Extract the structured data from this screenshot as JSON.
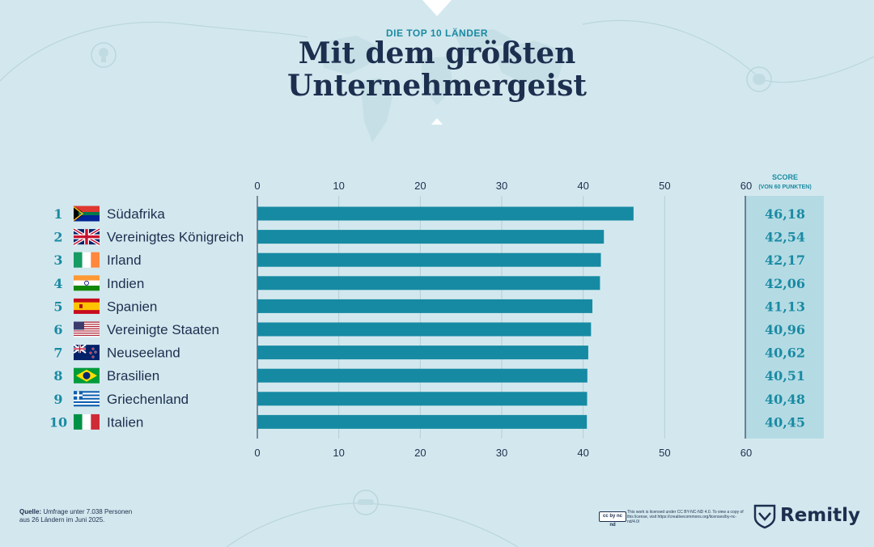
{
  "header": {
    "subtitle": "DIE TOP 10 LÄNDER",
    "title_line1": "Mit dem größten",
    "title_line2": "Unternehmergeist"
  },
  "chart_data": {
    "type": "bar",
    "orientation": "horizontal",
    "xlim": [
      0,
      60
    ],
    "ticks": [
      0,
      10,
      20,
      30,
      40,
      50,
      60
    ],
    "score_header_line1": "SCORE",
    "score_header_line2": "(VON 60 PUNKTEN)",
    "bar_color": "#168aa3",
    "rows": [
      {
        "rank": "1",
        "country": "Südafrika",
        "value": 46.18,
        "label": "46,18",
        "flag": "za-flag"
      },
      {
        "rank": "2",
        "country": "Vereinigtes Königreich",
        "value": 42.54,
        "label": "42,54",
        "flag": "uk-flag"
      },
      {
        "rank": "3",
        "country": "Irland",
        "value": 42.17,
        "label": "42,17",
        "flag": "ie-flag"
      },
      {
        "rank": "4",
        "country": "Indien",
        "value": 42.06,
        "label": "42,06",
        "flag": "in-flag"
      },
      {
        "rank": "5",
        "country": "Spanien",
        "value": 41.13,
        "label": "41,13",
        "flag": "es-flag"
      },
      {
        "rank": "6",
        "country": "Vereinigte Staaten",
        "value": 40.96,
        "label": "40,96",
        "flag": "us-flag"
      },
      {
        "rank": "7",
        "country": "Neuseeland",
        "value": 40.62,
        "label": "40,62",
        "flag": "nz-flag"
      },
      {
        "rank": "8",
        "country": "Brasilien",
        "value": 40.51,
        "label": "40,51",
        "flag": "br-flag"
      },
      {
        "rank": "9",
        "country": "Griechenland",
        "value": 40.48,
        "label": "40,48",
        "flag": "gr-flag"
      },
      {
        "rank": "10",
        "country": "Italien",
        "value": 40.45,
        "label": "40,45",
        "flag": "it-flag"
      }
    ]
  },
  "footer": {
    "source_label": "Quelle:",
    "source_text_1": "Umfrage unter 7.038 Personen",
    "source_text_2": "aus 26 Ländern im Juni 2025.",
    "license_badge": "cc by nc nd",
    "license_text": "This work is licensed under CC BY-NC-ND 4.0. To view a copy of this license, visit https://creativecommons.org/licenses/by-nc-nd/4.0/",
    "brand": "Remitly"
  },
  "colors": {
    "background": "#d3e8ee",
    "accent": "#1a8aa3",
    "text": "#1c2f4f",
    "score_panel": "#b4dbe4"
  }
}
